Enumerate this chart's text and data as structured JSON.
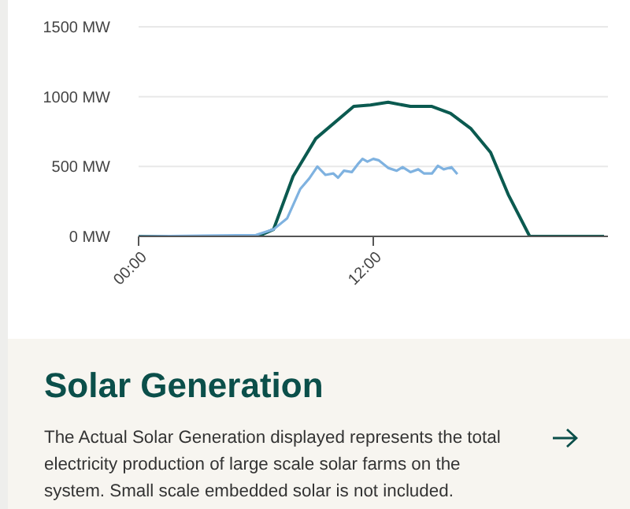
{
  "chart_data": {
    "type": "line",
    "title": "Solar Generation",
    "subtitle": "The Actual Solar Generation displayed represents the total electricity production of large scale solar farms on the system. Small scale embedded solar is not included.",
    "xlim": [
      0,
      24
    ],
    "xticks": [
      {
        "value": 0,
        "label": "00:00"
      },
      {
        "value": 12,
        "label": "12:00"
      }
    ],
    "ylim": [
      0,
      1500
    ],
    "yticks": [
      {
        "value": 0,
        "label": "0 MW"
      },
      {
        "value": 500,
        "label": "500 MW"
      },
      {
        "value": 1000,
        "label": "1000 MW"
      },
      {
        "value": 1500,
        "label": "1500 MW"
      }
    ],
    "grid": "y",
    "series": [
      {
        "color": "#0b5a50",
        "x": [
          0,
          6.1,
          6.9,
          7.9,
          9.06,
          11.0,
          11.86,
          12.76,
          13.9,
          15.0,
          15.95,
          17.0,
          18.0,
          18.9,
          20.0,
          23.8
        ],
        "values": [
          0,
          0,
          50,
          430,
          700,
          930,
          940,
          960,
          930,
          930,
          880,
          770,
          600,
          300,
          0,
          0
        ]
      },
      {
        "color": "#7fb2e0",
        "x": [
          0,
          6.0,
          6.9,
          7.6,
          8.27,
          8.73,
          9.14,
          9.55,
          9.96,
          10.2,
          10.5,
          10.9,
          11.2,
          11.45,
          11.7,
          12.0,
          12.27,
          12.76,
          13.2,
          13.5,
          13.9,
          14.3,
          14.6,
          15.0,
          15.3,
          15.6,
          16.0,
          16.3
        ],
        "values": [
          0,
          10,
          50,
          130,
          340,
          415,
          500,
          440,
          450,
          420,
          470,
          460,
          515,
          555,
          535,
          555,
          545,
          490,
          470,
          495,
          460,
          480,
          450,
          450,
          505,
          480,
          495,
          445
        ]
      }
    ]
  }
}
